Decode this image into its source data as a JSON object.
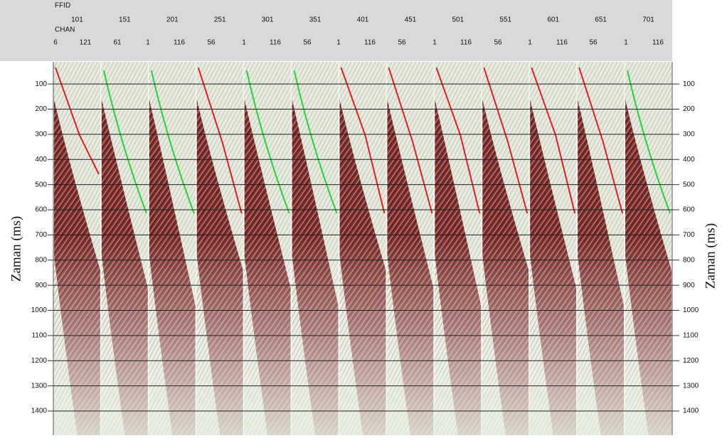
{
  "header": {
    "ffid_title": "FFID",
    "chan_title": "CHAN",
    "ffid": [
      "101",
      "151",
      "201",
      "251",
      "301",
      "351",
      "401",
      "451",
      "501",
      "551",
      "601",
      "651",
      "701"
    ],
    "chan": [
      "6",
      "121",
      "61",
      "1",
      "116",
      "56",
      "1",
      "116",
      "56",
      "1",
      "116",
      "56",
      "1",
      "116",
      "56",
      "1",
      "116",
      "56",
      "1",
      "116"
    ]
  },
  "axis": {
    "label": "Zaman (ms)",
    "range": [
      12,
      1496
    ],
    "ticks": [
      100,
      200,
      300,
      400,
      500,
      600,
      700,
      800,
      900,
      1000,
      1100,
      1200,
      1300,
      1400
    ]
  }
}
